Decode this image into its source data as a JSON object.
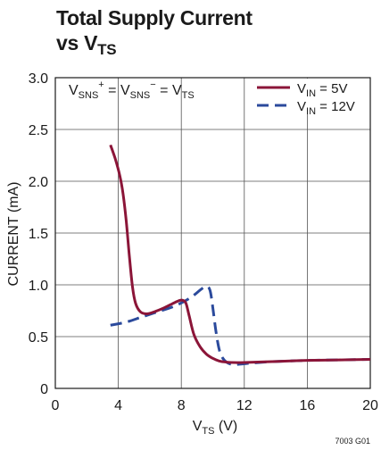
{
  "chart_data": {
    "type": "line",
    "title": {
      "line1": "Total Supply Current",
      "line2_prefix": "vs V",
      "line2_sub": "TS"
    },
    "xlabel": {
      "main": "V",
      "sub": "TS",
      "unit": " (V)"
    },
    "ylabel": "CURRENT (mA)",
    "xlim": [
      0,
      20
    ],
    "ylim": [
      0,
      3.0
    ],
    "x_ticks": [
      0,
      4,
      8,
      12,
      16,
      20
    ],
    "x_tick_labels": [
      "0",
      "4",
      "8",
      "12",
      "16",
      "20"
    ],
    "y_ticks": [
      0,
      0.5,
      1.0,
      1.5,
      2.0,
      2.5,
      3.0
    ],
    "y_tick_labels": [
      "0",
      "0.5",
      "1.0",
      "1.5",
      "2.0",
      "2.5",
      "3.0"
    ],
    "grid": true,
    "legend_position": "top-right",
    "annotation": {
      "v1": "V",
      "s1": "SNS",
      "sup1": "+",
      "eq1": " = ",
      "v2": "V",
      "s2": "SNS",
      "sup2": "−",
      "eq2": " = ",
      "v3": "V",
      "s3": "TS"
    },
    "series": [
      {
        "name": {
          "main": "V",
          "sub": "IN",
          "rest": " = 5V"
        },
        "color": "#8b1538",
        "style": "solid",
        "x": [
          3.5,
          3.8,
          4.1,
          4.3,
          4.5,
          4.7,
          4.9,
          5.1,
          5.4,
          5.8,
          6.3,
          6.8,
          7.2,
          7.6,
          7.9,
          8.1,
          8.3,
          8.5,
          8.8,
          9.2,
          9.6,
          10.0,
          10.4,
          10.8,
          11.2,
          12.0,
          14.0,
          16.0,
          18.0,
          20.0
        ],
        "y": [
          2.35,
          2.22,
          2.05,
          1.88,
          1.62,
          1.28,
          0.98,
          0.82,
          0.74,
          0.72,
          0.74,
          0.77,
          0.8,
          0.83,
          0.85,
          0.85,
          0.82,
          0.7,
          0.52,
          0.4,
          0.33,
          0.29,
          0.265,
          0.255,
          0.25,
          0.25,
          0.26,
          0.27,
          0.275,
          0.28
        ]
      },
      {
        "name": {
          "main": "V",
          "sub": "IN",
          "rest": " = 12V"
        },
        "color": "#2b4a9c",
        "style": "dashed",
        "x": [
          3.5,
          4.5,
          5.5,
          6.5,
          7.5,
          8.3,
          8.8,
          9.2,
          9.5,
          9.7,
          9.85,
          10.0,
          10.2,
          10.4,
          10.6,
          10.9,
          11.3,
          11.8,
          12.5,
          14.0,
          16.0,
          18.0,
          20.0
        ],
        "y": [
          0.61,
          0.64,
          0.69,
          0.74,
          0.79,
          0.85,
          0.9,
          0.95,
          0.98,
          0.98,
          0.93,
          0.78,
          0.55,
          0.38,
          0.3,
          0.25,
          0.23,
          0.235,
          0.245,
          0.26,
          0.27,
          0.275,
          0.28
        ]
      }
    ],
    "figure_id": "7003 G01"
  }
}
